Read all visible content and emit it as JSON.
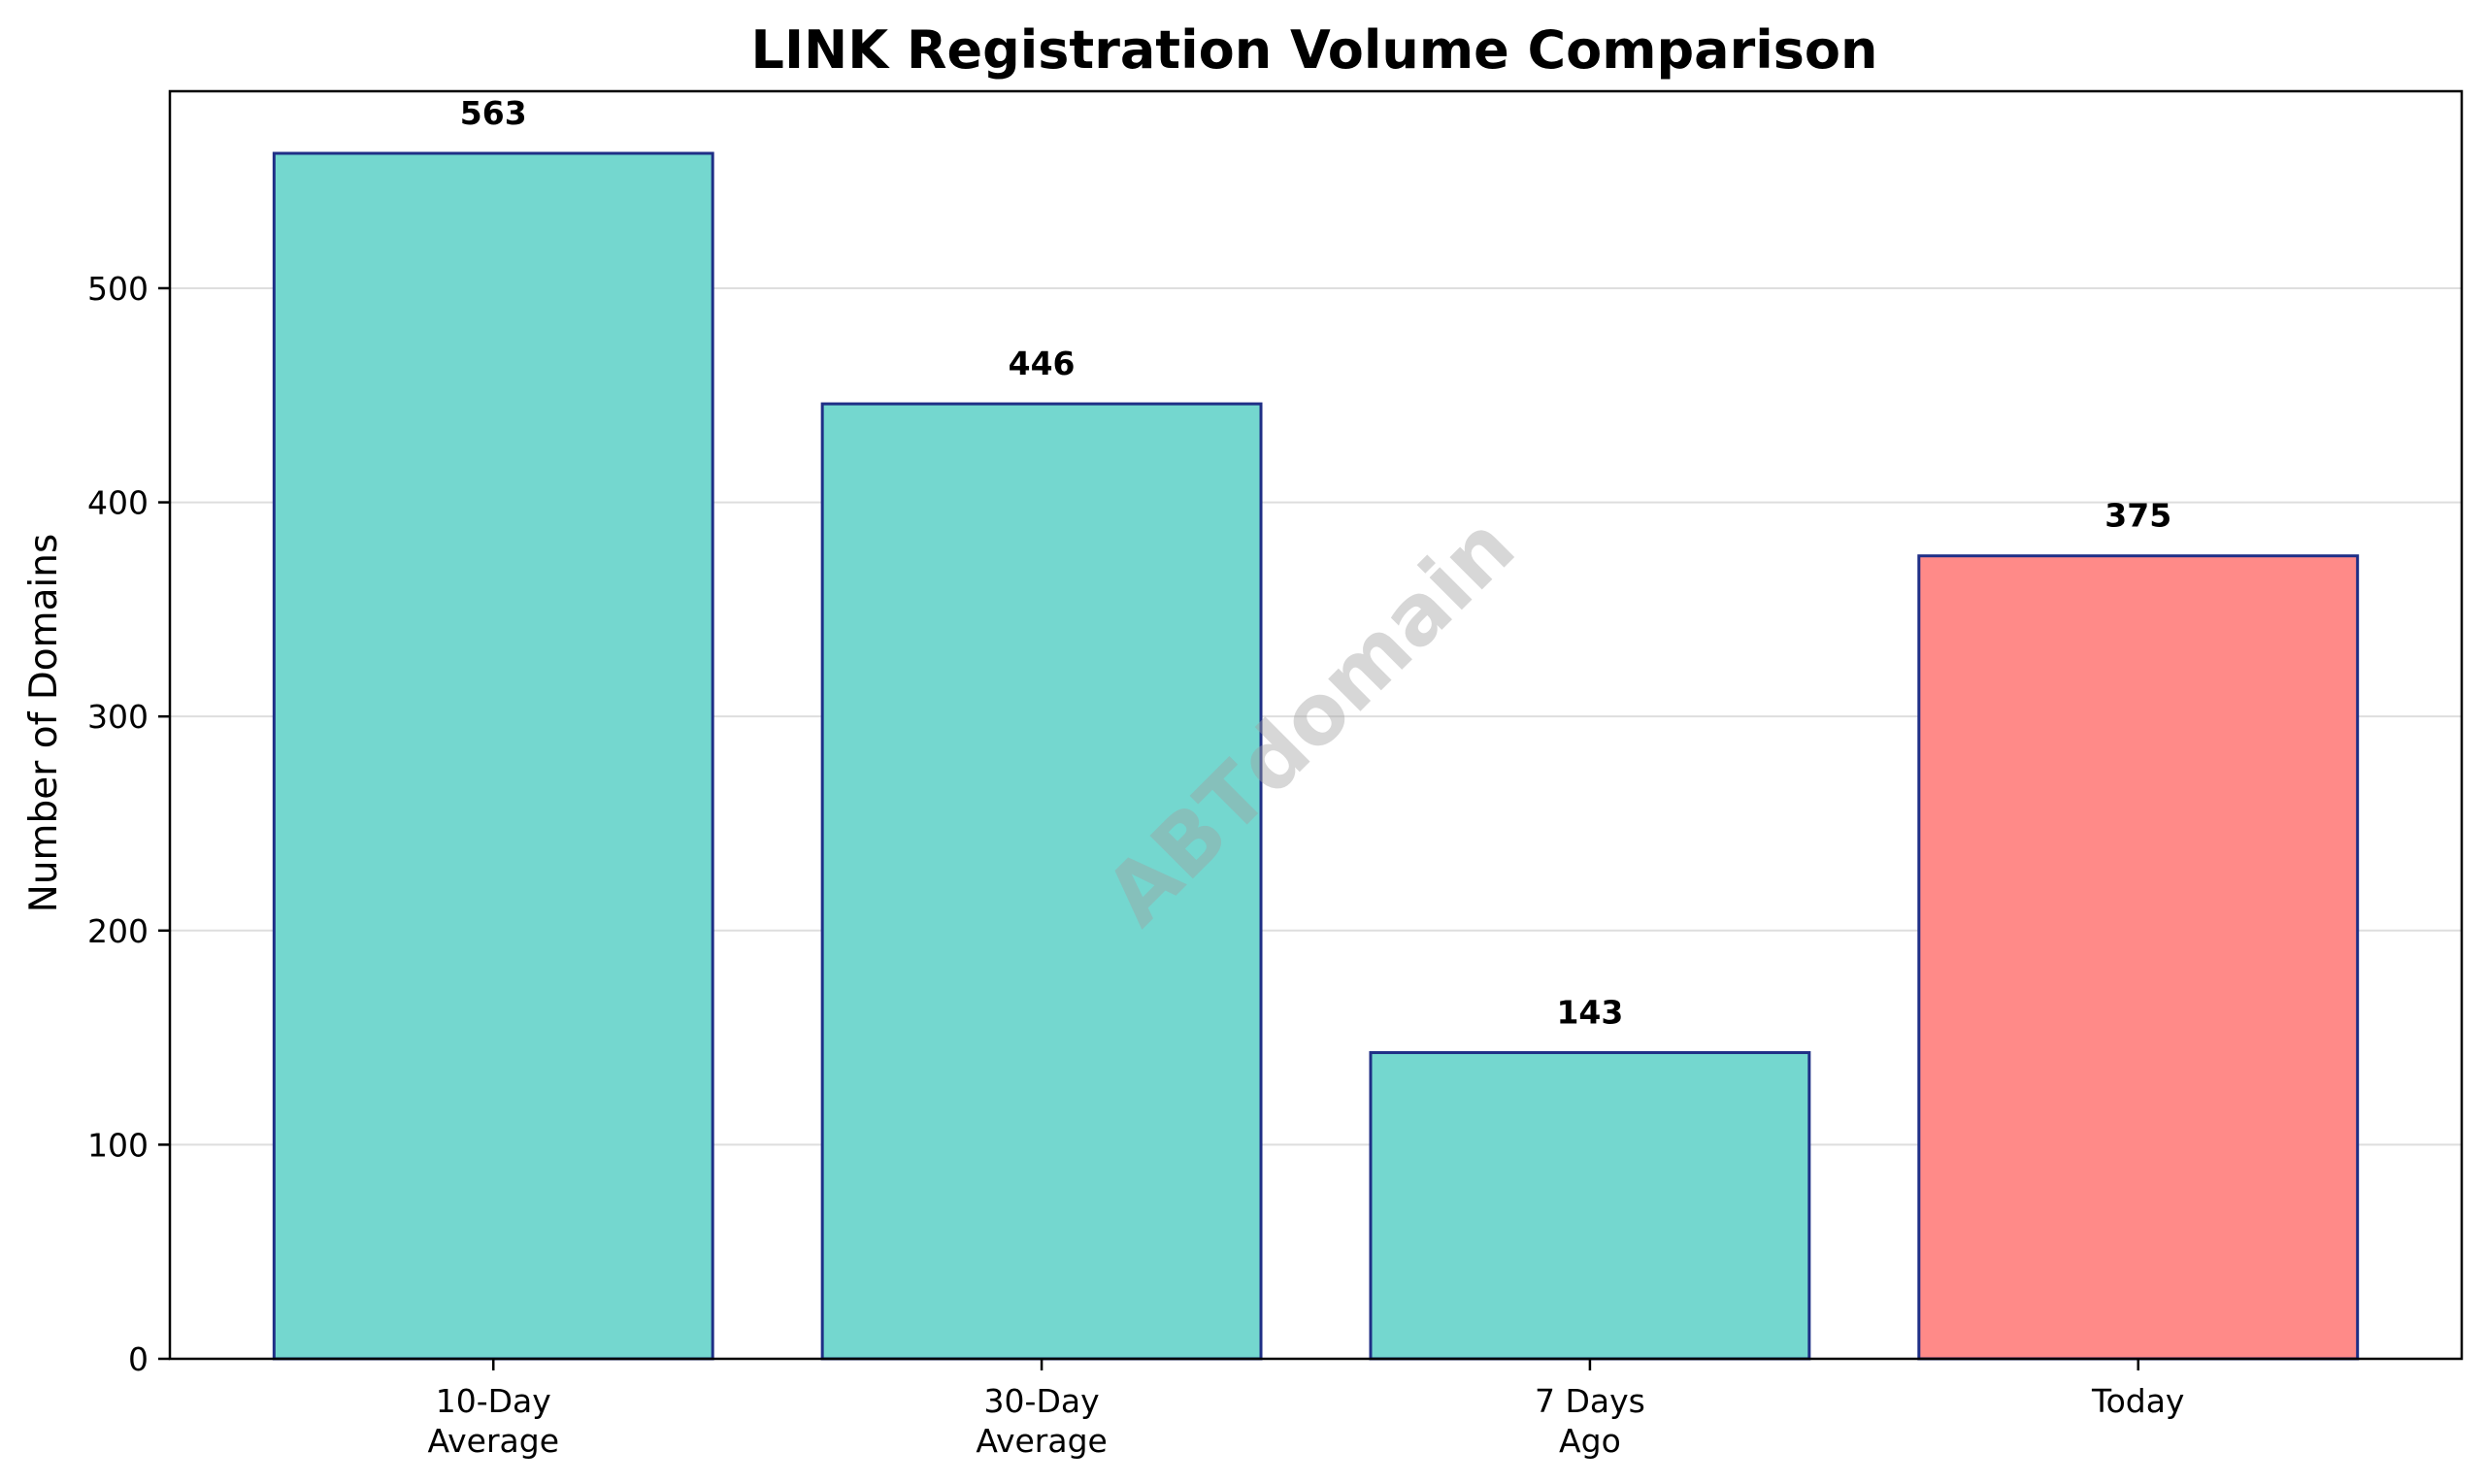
{
  "chart_data": {
    "type": "bar",
    "title": "LINK Registration Volume Comparison",
    "xlabel": "",
    "ylabel": "Number of Domains",
    "categories": [
      [
        "10-Day",
        "Average"
      ],
      [
        "30-Day",
        "Average"
      ],
      [
        "7 Days",
        "Ago"
      ],
      [
        "Today"
      ]
    ],
    "values": [
      563,
      446,
      143,
      375
    ],
    "value_labels": [
      "563",
      "446",
      "143",
      "375"
    ],
    "bar_colors": [
      "#74d7cf",
      "#74d7cf",
      "#74d7cf",
      "#ff8a88"
    ],
    "bar_edge_color": "#1f2f86",
    "ylim": [
      0,
      592
    ],
    "yticks": [
      0,
      100,
      200,
      300,
      400,
      500
    ],
    "ytick_labels": [
      "0",
      "100",
      "200",
      "300",
      "400",
      "500"
    ],
    "grid": "y",
    "legend": "none",
    "watermark": "ABTdomain"
  }
}
